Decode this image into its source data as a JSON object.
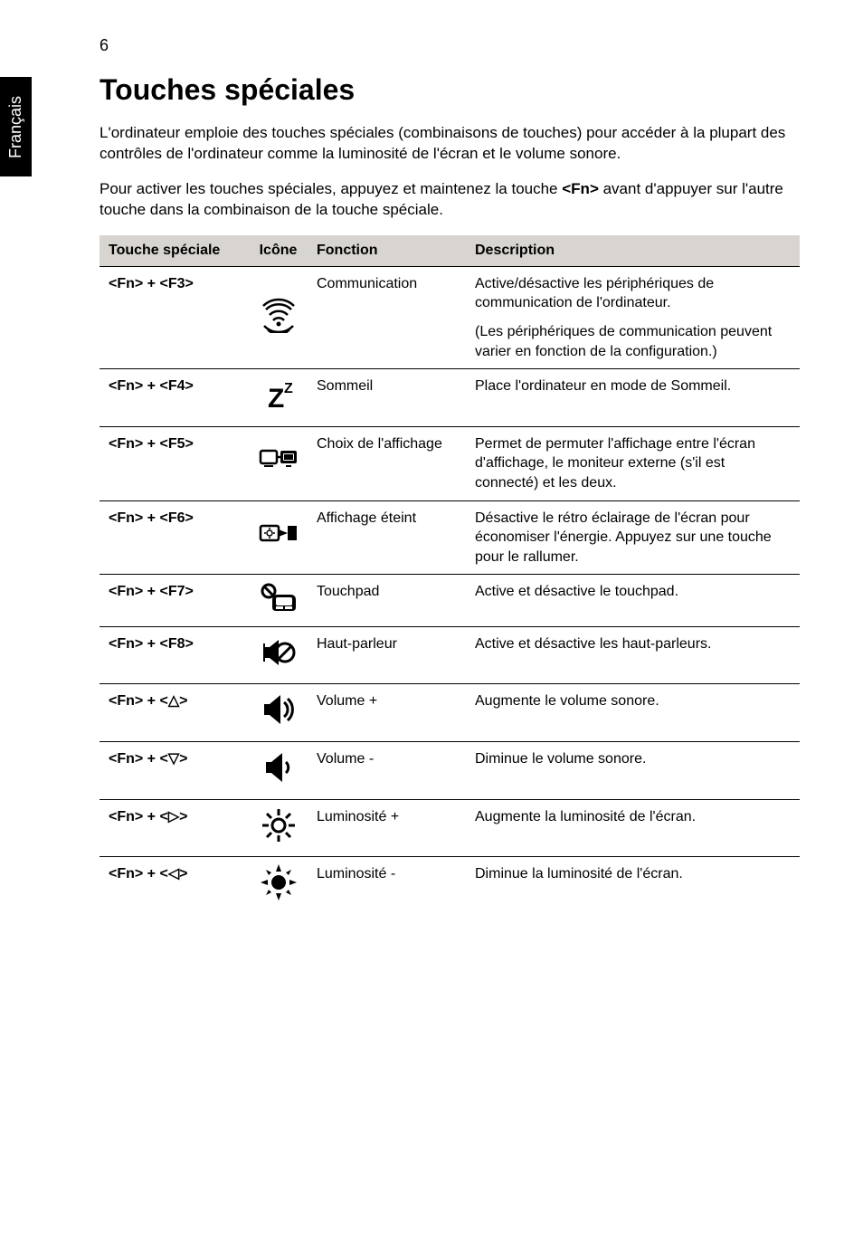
{
  "page_number": "6",
  "side_tab": "Français",
  "heading": "Touches spéciales",
  "paragraph1": "L'ordinateur emploie des touches spéciales (combinaisons de touches) pour accéder à la plupart des contrôles de l'ordinateur comme la luminosité de l'écran et le volume sonore.",
  "paragraph2_pre": "Pour activer les touches spéciales, appuyez et maintenez la touche ",
  "paragraph2_bold": "<Fn>",
  "paragraph2_post": " avant d'appuyer sur l'autre touche dans la combinaison de la touche spéciale.",
  "table": {
    "headers": {
      "key": "Touche spéciale",
      "icon": "Icône",
      "func": "Fonction",
      "desc": "Description"
    },
    "rows": [
      {
        "key": "<Fn> + <F3>",
        "icon": "wireless",
        "func": "Communication",
        "desc1": "Active/désactive les périphériques de communication de l'ordinateur.",
        "desc2": "(Les périphériques de communication peuvent varier en fonction de la configuration.)"
      },
      {
        "key": "<Fn> + <F4>",
        "icon": "sleep",
        "func": "Sommeil",
        "desc1": "Place l'ordinateur en mode de Sommeil."
      },
      {
        "key": "<Fn> + <F5>",
        "icon": "display-switch",
        "func": "Choix de l'affichage",
        "desc1": "Permet de permuter l'affichage entre l'écran d'affichage, le moniteur externe (s'il est connecté) et les deux."
      },
      {
        "key": "<Fn> + <F6>",
        "icon": "display-off",
        "func": "Affichage éteint",
        "desc1": "Désactive le rétro éclairage de l'écran pour économiser l'énergie. Appuyez sur une touche pour le rallumer."
      },
      {
        "key": "<Fn> + <F7>",
        "icon": "touchpad",
        "func": "Touchpad",
        "desc1": "Active et désactive le touchpad."
      },
      {
        "key": "<Fn> + <F8>",
        "icon": "speaker-mute",
        "func": "Haut-parleur",
        "desc1": "Active et désactive les haut-parleurs."
      },
      {
        "key": "<Fn> + <△>",
        "icon": "volume-up",
        "func": "Volume +",
        "desc1": "Augmente le volume sonore."
      },
      {
        "key": "<Fn> + <▽>",
        "icon": "volume-down",
        "func": "Volume -",
        "desc1": "Diminue le volume sonore."
      },
      {
        "key": "<Fn> + <▷>",
        "icon": "brightness-up",
        "func": "Luminosité +",
        "desc1": "Augmente la luminosité de l'écran."
      },
      {
        "key": "<Fn> + <◁>",
        "icon": "brightness-down",
        "func": "Luminosité -",
        "desc1": "Diminue la luminosité de l'écran."
      }
    ]
  },
  "icons": {
    "wireless": "<svg width='40' height='40' viewBox='0 0 40 40'><g fill='none' stroke='#000' stroke-width='2.5'><path d='M6 14 A20 20 0 0 1 34 14'/><path d='M10 20 A14 14 0 0 1 30 20'/><path d='M14 26 A8 8 0 0 1 26 26'/></g><circle cx='20' cy='30' r='2.5' fill='#000'/><path d='M3 10 A24 24 0 0 1 37 10' fill='none' stroke='#000' stroke-width='2.5'/><path d='M4 32 A22 22 0 0 0 36 32' fill='none' stroke='#000' stroke-width='2.5'/><path d='M8 36 A16 16 0 0 0 32 36' fill='none' stroke='#000' stroke-width='2.5'/></svg>",
    "sleep": "<svg width='40' height='40' viewBox='0 0 40 40'><text x='8' y='34' font-size='30' font-weight='bold' font-family='Arial'>Z</text><text x='26' y='18' font-size='16' font-weight='bold' font-family='Arial'>Z</text></svg>",
    "display-switch": "<svg width='44' height='30' viewBox='0 0 44 30'><rect x='2' y='4' width='18' height='14' rx='2' fill='none' stroke='#000' stroke-width='2.5'/><line x1='20' y1='11' x2='24' y2='11' stroke='#000' stroke-width='2.5'/><rect x='24' y='4' width='18' height='14' rx='2' fill='#000'/><rect x='27' y='7' width='12' height='8' rx='1' fill='#fff'/><rect x='28' y='8' width='10' height='6' fill='#000'/><rect x='6' y='20' width='10' height='2' fill='#000'/><rect x='30' y='20' width='6' height='2' fill='#000'/></svg>",
    "display-off": "<svg width='44' height='28' viewBox='0 0 44 28'><rect x='2' y='4' width='20' height='16' rx='2' fill='none' stroke='#000' stroke-width='2.5'/><circle cx='12' cy='12' r='3' fill='none' stroke='#000' stroke-width='1.5'/><line x1='12' y1='6' x2='12' y2='8' stroke='#000' stroke-width='1.5'/><line x1='12' y1='16' x2='12' y2='18' stroke='#000' stroke-width='1.5'/><line x1='6' y1='12' x2='8' y2='12' stroke='#000' stroke-width='1.5'/><line x1='16' y1='12' x2='18' y2='12' stroke='#000' stroke-width='1.5'/><polygon points='22,8 32,12 22,16' fill='#000'/><rect x='32' y='4' width='10' height='16' fill='#000'/></svg>",
    "touchpad": "<svg width='42' height='34' viewBox='0 0 42 34'><circle cx='10' cy='10' r='7' fill='none' stroke='#000' stroke-width='3'/><line x1='5' y1='5' x2='15' y2='15' stroke='#000' stroke-width='3'/><path d='M14 20 Q14 14 20 14 L34 14 Q40 14 40 20 L40 28 Q40 32 36 32 L18 32 Q14 32 14 28 Z' fill='#000'/><rect x='18' y='17' width='18' height='9' rx='2' fill='#fff'/><rect x='18' y='27' width='8' height='3' fill='#fff'/><rect x='28' y='27' width='8' height='3' fill='#fff'/></svg>",
    "speaker-mute": "<svg width='40' height='40' viewBox='0 0 40 40'><rect x='4' y='14' width='6' height='12' fill='#000'/><polygon points='10,14 20,6 20,34 10,26' fill='#000'/><circle cx='27' cy='20' r='10' fill='none' stroke='#000' stroke-width='3'/><line x1='20' y1='27' x2='34' y2='13' stroke='#000' stroke-width='3'/><line x1='4' y1='10' x2='4' y2='30' stroke='#000' stroke-width='2'/></svg>",
    "volume-up": "<svg width='40' height='40' viewBox='0 0 40 40'><rect x='4' y='14' width='6' height='12' fill='#000'/><polygon points='10,14 22,4 22,36 10,26' fill='#000'/><path d='M26 12 A10 10 0 0 1 26 28' fill='none' stroke='#000' stroke-width='3'/><path d='M30 8 A16 16 0 0 1 30 32' fill='none' stroke='#000' stroke-width='3'/></svg>",
    "volume-down": "<svg width='40' height='40' viewBox='0 0 40 40'><rect x='6' y='14' width='6' height='12' fill='#000'/><polygon points='12,14 24,4 24,36 12,26' fill='#000'/><path d='M28 14 A8 8 0 0 1 28 26' fill='none' stroke='#000' stroke-width='3'/></svg>",
    "brightness-up": "<svg width='40' height='40' viewBox='0 0 40 40'><circle cx='20' cy='20' r='7' fill='none' stroke='#000' stroke-width='3'/><g stroke='#000' stroke-width='3'><line x1='20' y1='2' x2='20' y2='9'/><line x1='20' y1='31' x2='20' y2='38'/><line x1='2' y1='20' x2='9' y2='20'/><line x1='31' y1='20' x2='38' y2='20'/><line x1='7' y1='7' x2='12' y2='12'/><line x1='28' y1='28' x2='33' y2='33'/><line x1='28' y1='12' x2='33' y2='7'/><line x1='7' y1='33' x2='12' y2='28'/></g></svg>",
    "brightness-down": "<svg width='40' height='40' viewBox='0 0 40 40'><circle cx='20' cy='20' r='8' fill='#000'/><g fill='#000'><polygon points='20,0 17,8 23,8'/><polygon points='20,40 17,32 23,32'/><polygon points='0,20 8,17 8,23'/><polygon points='40,20 32,17 32,23'/><polygon points='6,6 12,9 9,12'/><polygon points='34,34 28,31 31,28'/><polygon points='34,6 31,12 28,9'/><polygon points='6,34 9,28 12,31'/></g></svg>"
  }
}
